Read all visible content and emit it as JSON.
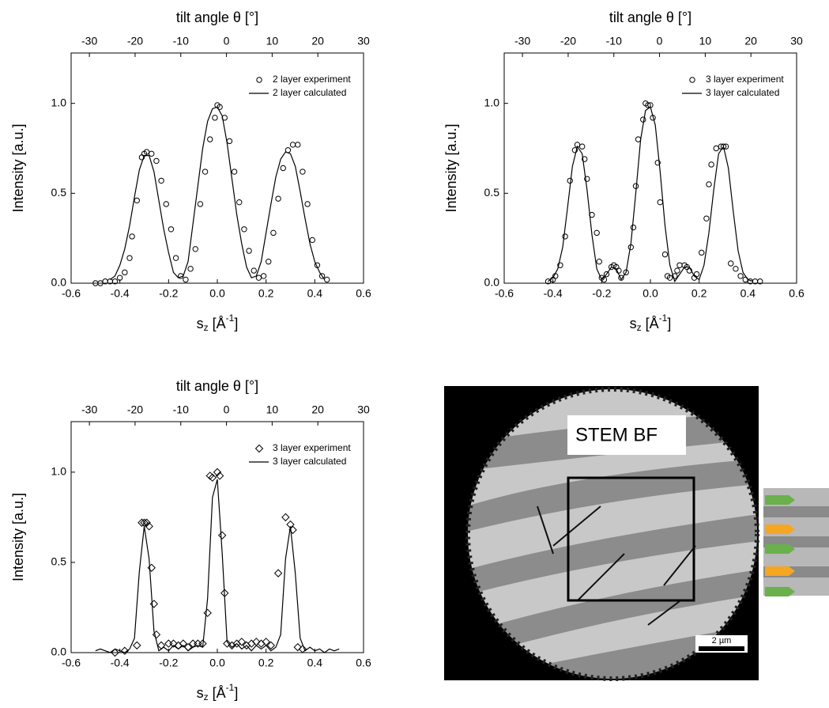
{
  "chart_data": [
    {
      "type": "scatter",
      "x2label": "tilt angle θ [°]",
      "ylabel": "Intensity [a.u.]",
      "xlabel": "s",
      "xlabel_sub": "z",
      "xlabel_unit": " [Å",
      "xlabel_sup": "-1",
      "xlabel_end": "]",
      "xlim": [
        -0.6,
        0.6
      ],
      "xticks": [
        -0.6,
        -0.4,
        -0.2,
        {
          "value": 0,
          "label": "0.0"
        },
        0.2,
        0.4,
        0.6
      ],
      "x2lim": [
        -34,
        30
      ],
      "x2ticks": [
        -30,
        -20,
        -10,
        0,
        10,
        20,
        30
      ],
      "ylim": [
        0,
        1.28
      ],
      "yticks": [
        {
          "value": 0,
          "label": "0.0"
        },
        0.5,
        {
          "value": 1,
          "label": "1.0"
        }
      ],
      "series": [
        {
          "name": "2 layer experiment",
          "color": "#000000",
          "marker": "circle",
          "x": [
            -0.5,
            -0.48,
            -0.46,
            -0.44,
            -0.42,
            -0.4,
            -0.38,
            -0.36,
            -0.35,
            -0.33,
            -0.31,
            -0.3,
            -0.29,
            -0.27,
            -0.25,
            -0.23,
            -0.21,
            -0.19,
            -0.17,
            -0.15,
            -0.13,
            -0.11,
            -0.09,
            -0.07,
            -0.05,
            -0.03,
            -0.01,
            0,
            0.01,
            0.03,
            0.05,
            0.07,
            0.09,
            0.11,
            0.13,
            0.15,
            0.17,
            0.19,
            0.21,
            0.23,
            0.25,
            0.27,
            0.29,
            0.31,
            0.33,
            0.35,
            0.37,
            0.39,
            0.41,
            0.43,
            0.45
          ],
          "values": [
            0,
            0,
            0.01,
            0.01,
            0.01,
            0.03,
            0.06,
            0.14,
            0.26,
            0.46,
            0.7,
            0.72,
            0.73,
            0.72,
            0.68,
            0.57,
            0.44,
            0.3,
            0.14,
            0.04,
            0.02,
            0.08,
            0.19,
            0.44,
            0.62,
            0.8,
            0.92,
            0.99,
            0.98,
            0.92,
            0.79,
            0.62,
            0.45,
            0.3,
            0.18,
            0.07,
            0.03,
            0.04,
            0.12,
            0.28,
            0.47,
            0.64,
            0.74,
            0.77,
            0.77,
            0.62,
            0.44,
            0.24,
            0.1,
            0.04,
            0.02
          ]
        },
        {
          "name": "2 layer calculated",
          "color": "#000000",
          "line": true,
          "x": [
            -0.44,
            -0.42,
            -0.4,
            -0.38,
            -0.36,
            -0.34,
            -0.32,
            -0.3,
            -0.28,
            -0.26,
            -0.24,
            -0.22,
            -0.2,
            -0.18,
            -0.16,
            -0.14,
            -0.12,
            -0.1,
            -0.08,
            -0.06,
            -0.04,
            -0.02,
            0,
            0.02,
            0.04,
            0.06,
            0.08,
            0.1,
            0.12,
            0.14,
            0.16,
            0.18,
            0.2,
            0.22,
            0.24,
            0.26,
            0.28,
            0.3,
            0.32,
            0.34,
            0.36,
            0.38,
            0.4,
            0.42,
            0.44
          ],
          "values": [
            0.02,
            0.04,
            0.1,
            0.19,
            0.32,
            0.48,
            0.63,
            0.71,
            0.71,
            0.62,
            0.46,
            0.3,
            0.17,
            0.06,
            0.03,
            0.04,
            0.12,
            0.33,
            0.54,
            0.75,
            0.9,
            0.97,
            0.98,
            0.93,
            0.78,
            0.58,
            0.38,
            0.22,
            0.09,
            0.03,
            0.04,
            0.12,
            0.28,
            0.44,
            0.59,
            0.69,
            0.73,
            0.72,
            0.65,
            0.51,
            0.36,
            0.22,
            0.12,
            0.06,
            0.02
          ]
        }
      ]
    },
    {
      "type": "scatter",
      "x2label": "tilt angle θ [°]",
      "ylabel": "Intensity [a.u.]",
      "xlabel": "s",
      "xlabel_sub": "z",
      "xlabel_unit": " [Å",
      "xlabel_sup": "-1",
      "xlabel_end": "]",
      "xlim": [
        -0.6,
        0.6
      ],
      "xticks": [
        -0.6,
        -0.4,
        -0.2,
        {
          "value": 0,
          "label": "0.0"
        },
        0.2,
        0.4,
        0.6
      ],
      "x2lim": [
        -34,
        30
      ],
      "x2ticks": [
        -30,
        -20,
        -10,
        0,
        10,
        20,
        30
      ],
      "ylim": [
        0,
        1.28
      ],
      "yticks": [
        {
          "value": 0,
          "label": "0.0"
        },
        0.5,
        {
          "value": 1,
          "label": "1.0"
        }
      ],
      "series": [
        {
          "name": "3 layer experiment",
          "color": "#000000",
          "marker": "circle",
          "x": [
            -0.42,
            -0.4,
            -0.39,
            -0.37,
            -0.35,
            -0.33,
            -0.31,
            -0.3,
            -0.28,
            -0.27,
            -0.26,
            -0.24,
            -0.22,
            -0.21,
            -0.2,
            -0.19,
            -0.18,
            -0.16,
            -0.15,
            -0.14,
            -0.13,
            -0.12,
            -0.1,
            -0.08,
            -0.07,
            -0.06,
            -0.05,
            -0.03,
            -0.02,
            -0.01,
            0,
            0.01,
            0.03,
            0.04,
            0.06,
            0.07,
            0.08,
            0.1,
            0.11,
            0.12,
            0.14,
            0.15,
            0.16,
            0.18,
            0.19,
            0.21,
            0.23,
            0.24,
            0.25,
            0.27,
            0.29,
            0.3,
            0.31,
            0.33,
            0.35,
            0.37,
            0.39,
            0.41,
            0.43,
            0.45
          ],
          "values": [
            0.01,
            0.02,
            0.04,
            0.1,
            0.26,
            0.57,
            0.74,
            0.77,
            0.76,
            0.69,
            0.58,
            0.38,
            0.28,
            0.12,
            0.03,
            0.02,
            0.05,
            0.09,
            0.1,
            0.09,
            0.07,
            0.03,
            0.06,
            0.2,
            0.31,
            0.54,
            0.8,
            0.91,
            1,
            0.99,
            0.99,
            0.92,
            0.67,
            0.45,
            0.16,
            0.04,
            0.03,
            0.04,
            0.07,
            0.1,
            0.1,
            0.09,
            0.07,
            0.03,
            0.05,
            0.17,
            0.36,
            0.55,
            0.66,
            0.75,
            0.76,
            0.76,
            0.76,
            0.11,
            0.08,
            0.04,
            0.02,
            0.01,
            0.01,
            0.01
          ]
        },
        {
          "name": "3 layer calculated",
          "color": "#000000",
          "line": true,
          "x": [
            -0.42,
            -0.4,
            -0.38,
            -0.36,
            -0.34,
            -0.32,
            -0.3,
            -0.28,
            -0.26,
            -0.24,
            -0.22,
            -0.2,
            -0.18,
            -0.16,
            -0.14,
            -0.12,
            -0.1,
            -0.08,
            -0.06,
            -0.04,
            -0.02,
            0,
            0.02,
            0.04,
            0.06,
            0.08,
            0.1,
            0.12,
            0.14,
            0.16,
            0.18,
            0.2,
            0.22,
            0.24,
            0.26,
            0.28,
            0.3,
            0.32,
            0.34,
            0.36,
            0.38,
            0.4,
            0.42
          ],
          "values": [
            0.01,
            0.03,
            0.08,
            0.2,
            0.42,
            0.65,
            0.76,
            0.72,
            0.52,
            0.27,
            0.08,
            0.02,
            0.05,
            0.09,
            0.08,
            0.02,
            0.06,
            0.22,
            0.5,
            0.8,
            0.96,
            0.98,
            0.88,
            0.62,
            0.32,
            0.1,
            0.01,
            0.05,
            0.09,
            0.09,
            0.04,
            0.02,
            0.1,
            0.28,
            0.52,
            0.72,
            0.76,
            0.64,
            0.4,
            0.18,
            0.06,
            0.02,
            0.01
          ]
        }
      ]
    },
    {
      "type": "scatter",
      "x2label": "tilt angle θ [°]",
      "ylabel": "Intensity [a.u.]",
      "xlabel": "s",
      "xlabel_sub": "z",
      "xlabel_unit": " [Å",
      "xlabel_sup": "-1",
      "xlabel_end": "]",
      "xlim": [
        -0.6,
        0.6
      ],
      "xticks": [
        -0.6,
        -0.4,
        -0.2,
        {
          "value": 0,
          "label": "0.0"
        },
        0.2,
        0.4,
        0.6
      ],
      "x2lim": [
        -34,
        30
      ],
      "x2ticks": [
        -30,
        -20,
        -10,
        0,
        10,
        20,
        30
      ],
      "ylim": [
        0,
        1.28
      ],
      "yticks": [
        {
          "value": 0,
          "label": "0.0"
        },
        0.5,
        {
          "value": 1,
          "label": "1.0"
        }
      ],
      "series": [
        {
          "name": "3 layer experiment",
          "color": "#000000",
          "marker": "diamond",
          "x": [
            -0.42,
            -0.38,
            -0.33,
            -0.31,
            -0.3,
            -0.29,
            -0.28,
            -0.27,
            -0.26,
            -0.25,
            -0.23,
            -0.2,
            -0.18,
            -0.16,
            -0.14,
            -0.12,
            -0.1,
            -0.08,
            -0.06,
            -0.04,
            -0.03,
            -0.02,
            0,
            0.01,
            0.02,
            0.03,
            0.04,
            0.06,
            0.08,
            0.1,
            0.12,
            0.14,
            0.16,
            0.18,
            0.2,
            0.22,
            0.25,
            0.28,
            0.3,
            0.31,
            0.33,
            0.35
          ],
          "values": [
            0,
            0.01,
            0.04,
            0.72,
            0.72,
            0.72,
            0.7,
            0.47,
            0.27,
            0.1,
            0.04,
            0.05,
            0.05,
            0.04,
            0.05,
            0.03,
            0.05,
            0.05,
            0.05,
            0.22,
            0.98,
            0.97,
            1,
            0.98,
            0.65,
            0.33,
            0.05,
            0.04,
            0.05,
            0.06,
            0.04,
            0.05,
            0.06,
            0.05,
            0.06,
            0.04,
            0.44,
            0.75,
            0.71,
            0.68,
            0.03,
            0.02
          ]
        },
        {
          "name": "3 layer calculated",
          "color": "#000000",
          "line": true,
          "x": [
            -0.5,
            -0.48,
            -0.46,
            -0.44,
            -0.42,
            -0.4,
            -0.38,
            -0.36,
            -0.34,
            -0.32,
            -0.3,
            -0.28,
            -0.26,
            -0.24,
            -0.22,
            -0.2,
            -0.18,
            -0.16,
            -0.14,
            -0.12,
            -0.1,
            -0.08,
            -0.06,
            -0.04,
            -0.02,
            0,
            0.02,
            0.04,
            0.06,
            0.08,
            0.1,
            0.12,
            0.14,
            0.16,
            0.18,
            0.2,
            0.22,
            0.24,
            0.26,
            0.28,
            0.3,
            0.32,
            0.34,
            0.36,
            0.38,
            0.4,
            0.42,
            0.44,
            0.46,
            0.48,
            0.5
          ],
          "values": [
            0.01,
            0.02,
            0.01,
            0,
            0.02,
            0.01,
            0,
            0.02,
            0.08,
            0.45,
            0.7,
            0.52,
            0.12,
            0.01,
            0.03,
            0.01,
            0.04,
            0.02,
            0.04,
            0.01,
            0.03,
            0.04,
            0.03,
            0.3,
            0.86,
            0.96,
            0.55,
            0.06,
            0.03,
            0.05,
            0.02,
            0.04,
            0.01,
            0.04,
            0.02,
            0.04,
            0.01,
            0.03,
            0.1,
            0.52,
            0.7,
            0.44,
            0.08,
            0.01,
            0.03,
            0.01,
            0.02,
            0,
            0.02,
            0.01,
            0.02
          ]
        }
      ]
    }
  ],
  "image_panel": {
    "label": "STEM BF",
    "scale_bar": "2 µm"
  }
}
